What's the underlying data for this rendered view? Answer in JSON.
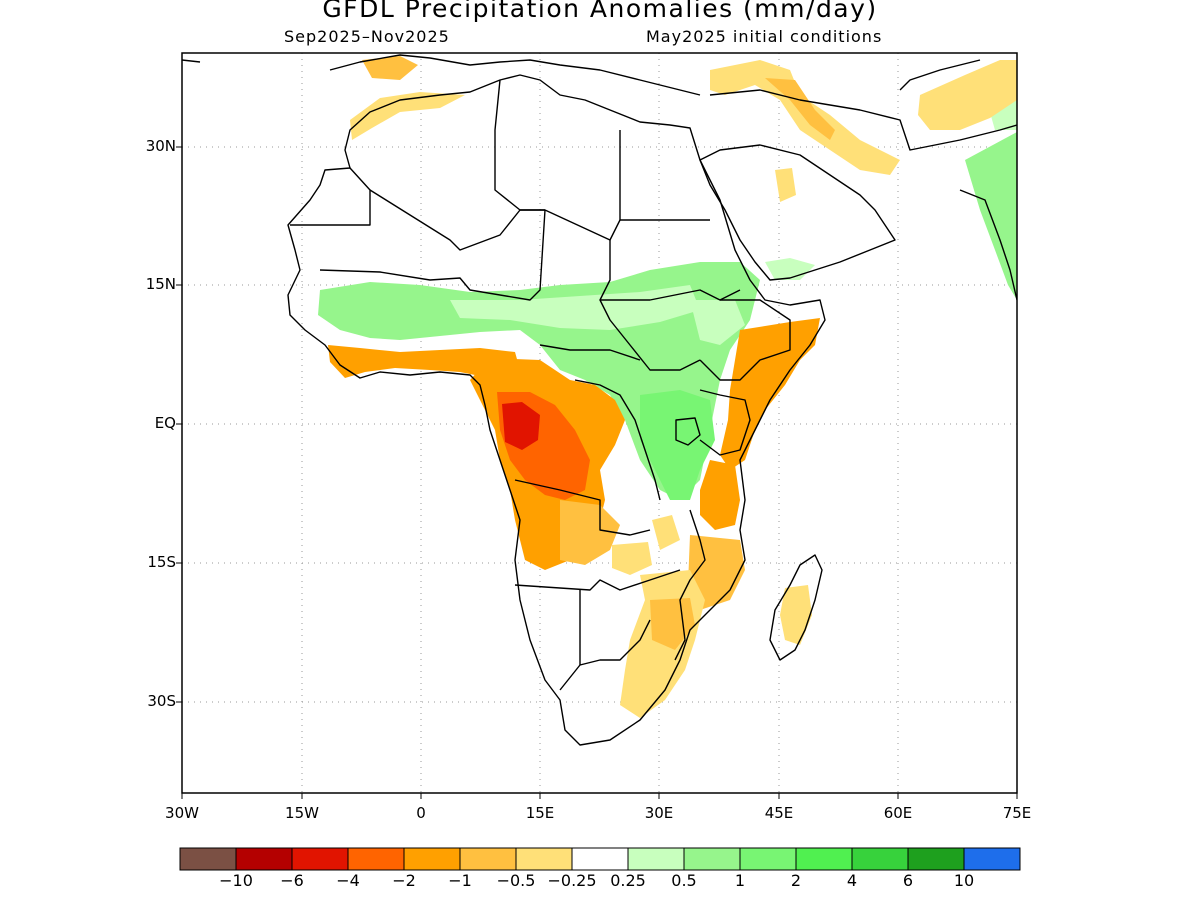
{
  "title": "GFDL Precipitation Anomalies (mm/day)",
  "season": "Sep2025–Nov2025",
  "initial_conditions": "May2025 initial conditions",
  "lat_ticks": [
    "30N",
    "15N",
    "EQ",
    "15S",
    "30S"
  ],
  "lon_ticks": [
    "30W",
    "15W",
    "0",
    "15E",
    "30E",
    "45E",
    "60E",
    "75E"
  ],
  "colorbar": {
    "labels": [
      "−10",
      "−6",
      "−4",
      "−2",
      "−1",
      "−0.5",
      "−0.25",
      "0.25",
      "0.5",
      "1",
      "2",
      "4",
      "6",
      "10"
    ],
    "colors": [
      "#7b5044",
      "#b40000",
      "#e11400",
      "#ff6400",
      "#ffa000",
      "#ffc040",
      "#ffe078",
      "#ffffff",
      "#c8ffbe",
      "#96f58c",
      "#78f573",
      "#50f050",
      "#37d23c",
      "#1ea01e",
      "#1e6eeb"
    ]
  },
  "anomaly_colors": {
    "dry_strong": "#e11400",
    "dry_moderate": "#ff6400",
    "dry": "#ffa000",
    "dry_light": "#ffc040",
    "dry_slight": "#ffe078",
    "wet_slight": "#c8ffbe",
    "wet_light": "#96f58c",
    "wet": "#78f573"
  }
}
